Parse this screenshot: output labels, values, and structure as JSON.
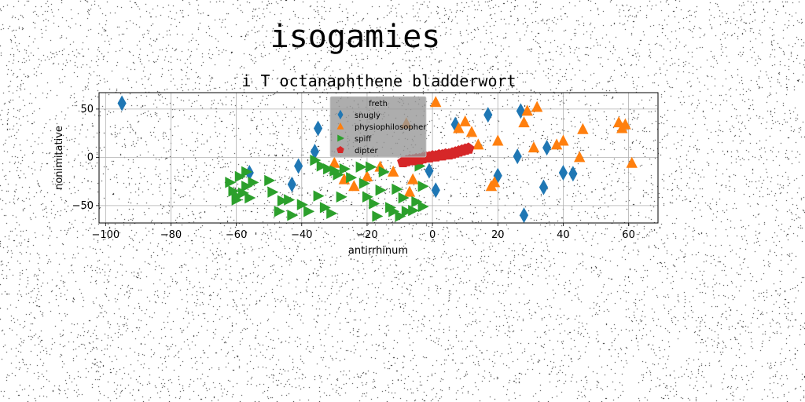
{
  "chart_data": {
    "type": "scatter",
    "suptitle": "isogamies",
    "title": "i T octanaphthene bladderwort",
    "xlabel": "antirrhinum",
    "ylabel": "nonimitative",
    "xlim": [
      -102,
      69
    ],
    "ylim": [
      -68,
      67
    ],
    "xticks": [
      -100,
      -80,
      -60,
      -40,
      -20,
      0,
      20,
      40,
      60
    ],
    "yticks": [
      -50,
      0,
      50
    ],
    "xtick_labels": [
      "−100",
      "−80",
      "−60",
      "−40",
      "−20",
      "0",
      "20",
      "40",
      "60"
    ],
    "ytick_labels": [
      "−50",
      "0",
      "50"
    ],
    "grid": true,
    "legend": {
      "title": "freth",
      "placement": "upper-center"
    },
    "series": [
      {
        "name": "snugly",
        "marker": "diamond",
        "color": "#1f77b4",
        "x": [
          -95,
          -56,
          -41,
          -43,
          -36,
          -35,
          -1,
          1,
          7,
          17,
          20,
          26,
          27,
          28,
          34,
          35,
          40,
          43
        ],
        "y": [
          56,
          -16,
          -9,
          -28,
          6,
          30,
          -14,
          -34,
          34,
          44,
          -19,
          1,
          48,
          -60,
          -31,
          10,
          -16,
          -17
        ]
      },
      {
        "name": "physiophilosopher",
        "marker": "triangle-up",
        "color": "#ff7f0e",
        "x": [
          -30,
          -27,
          -24,
          -20,
          -16,
          -12,
          -8,
          -7,
          -6,
          1,
          8,
          10,
          12,
          14,
          18,
          19,
          20,
          28,
          29,
          31,
          32,
          38,
          40,
          45,
          46,
          57,
          58,
          59,
          61
        ],
        "y": [
          -6,
          -23,
          -30,
          -20,
          -10,
          -15,
          35,
          -36,
          -23,
          57,
          30,
          37,
          26,
          13,
          -30,
          -26,
          17,
          36,
          48,
          10,
          52,
          13,
          17,
          0,
          29,
          36,
          30,
          34,
          -6
        ]
      },
      {
        "name": "spiff",
        "marker": "triangle-right",
        "color": "#2ca02c",
        "x": [
          -62,
          -61,
          -60,
          -60,
          -59,
          -58,
          -57,
          -57,
          -56,
          -55,
          -50,
          -49,
          -47,
          -46,
          -44,
          -43,
          -40,
          -38,
          -36,
          -35,
          -34,
          -33,
          -32,
          -31,
          -30,
          -29,
          -28,
          -27,
          -25,
          -22,
          -21,
          -20,
          -19,
          -18,
          -17,
          -16,
          -15,
          -13,
          -12,
          -11,
          -10,
          -9,
          -8,
          -6,
          -5,
          -4,
          -3,
          -3
        ],
        "y": [
          -26,
          -35,
          -40,
          -44,
          -20,
          -37,
          -30,
          -15,
          -42,
          -26,
          -24,
          -36,
          -56,
          -45,
          -44,
          -60,
          -49,
          -56,
          -3,
          -40,
          -9,
          -52,
          -12,
          -58,
          -14,
          -18,
          -41,
          -12,
          -21,
          -10,
          -27,
          -41,
          -10,
          -48,
          -61,
          -34,
          -15,
          -52,
          -56,
          -33,
          -61,
          -42,
          -56,
          -55,
          -46,
          -9,
          -30,
          -51
        ]
      },
      {
        "name": "dipter",
        "marker": "pentagon",
        "color": "#d62728",
        "x": [
          -9,
          -8,
          -7,
          -6,
          -5,
          -4,
          -3,
          -2,
          -1,
          0,
          1,
          2,
          3,
          4,
          5,
          6,
          7,
          8,
          9,
          10,
          11
        ],
        "y": [
          -5,
          -4,
          -3,
          -3,
          -2,
          -2,
          -1,
          0,
          0,
          1,
          1,
          2,
          2,
          3,
          3,
          4,
          5,
          6,
          7,
          8,
          9
        ]
      }
    ]
  }
}
